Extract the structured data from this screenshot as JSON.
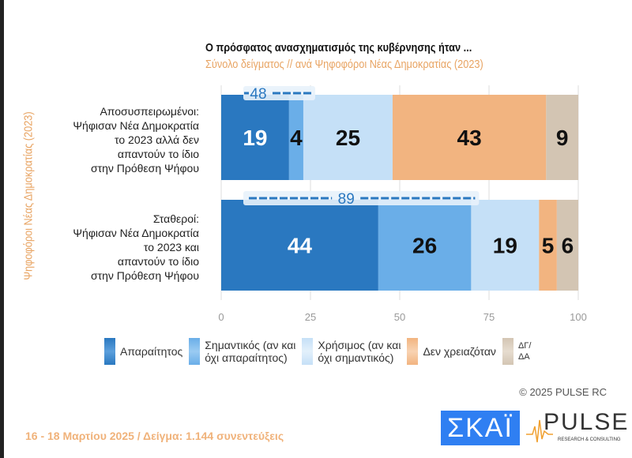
{
  "chart_data": {
    "type": "bar",
    "orientation": "horizontal",
    "stacked": true,
    "title": "Ο πρόσφατος ανασχηματισμός της κυβέρνησης ήταν ...",
    "subtitle": "Σύνολο δείγματος // ανά Ψηφοφόροι Νέας Δημοκρατίας (2023)",
    "ylabel": "Ψηφοφόροι Νέας Δημοκρατίας (2023)",
    "xlim": [
      0,
      100
    ],
    "xticks": [
      0,
      25,
      50,
      75,
      100
    ],
    "grid": true,
    "legend_position": "bottom",
    "categories": [
      {
        "lines": [
          "Αποσυσπειρωμένοι:",
          "Ψήφισαν Νέα Δημοκρατία",
          "το 2023 αλλά δεν",
          "απαντούν το ίδιο",
          "στην Πρόθεση Ψήφου"
        ]
      },
      {
        "lines": [
          "Σταθεροί:",
          "Ψήφισαν Νέα Δημοκρατία",
          "το 2023 και",
          "απαντούν το ίδιο",
          "στην Πρόθεση Ψήφου"
        ]
      }
    ],
    "series": [
      {
        "name": "Απαραίτητος",
        "color": "#2a78c0",
        "values": [
          19,
          44
        ]
      },
      {
        "name": "Σημαντικός (αν και όχι απαραίτητος)",
        "color": "#6aaee8",
        "values": [
          4,
          26
        ]
      },
      {
        "name": "Χρήσιμος (αν και όχι σημαντικός)",
        "color": "#c5e0f7",
        "values": [
          25,
          19
        ]
      },
      {
        "name": "Δεν χρειαζόταν",
        "color": "#f2b480",
        "values": [
          43,
          5
        ]
      },
      {
        "name": "ΔΓ/ΔΑ",
        "color": "#d3c5b3",
        "values": [
          9,
          6
        ]
      }
    ],
    "bracket_totals": [
      48,
      89
    ],
    "legend_labels": [
      [
        "Απαραίτητος"
      ],
      [
        "Σημαντικός (αν και",
        "όχι απαραίτητος)"
      ],
      [
        "Χρήσιμος (αν και",
        "όχι σημαντικός)"
      ],
      [
        "Δεν χρειαζόταν"
      ],
      [
        "ΔΓ/",
        "ΔΑ"
      ]
    ]
  },
  "footer": {
    "copyright": "© 2025 PULSE RC",
    "dates": "16 - 18 Μαρτίου 2025  /  Δείγμα:  1.144 συνεντεύξεις",
    "logo_skai": "ΣΚΑΪ",
    "logo_pulse": "PULSE",
    "logo_pulse_sub": "RESEARCH & CONSULTING"
  }
}
